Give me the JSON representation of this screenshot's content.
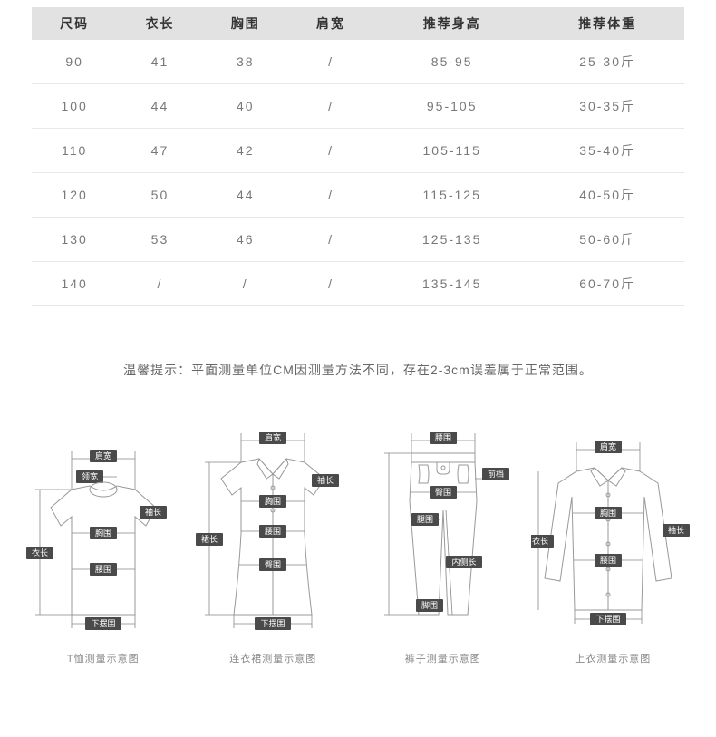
{
  "size_table": {
    "columns": [
      "尺码",
      "衣长",
      "胸围",
      "肩宽",
      "推荐身高",
      "推荐体重"
    ],
    "rows": [
      [
        "90",
        "41",
        "38",
        "/",
        "85-95",
        "25-30斤"
      ],
      [
        "100",
        "44",
        "40",
        "/",
        "95-105",
        "30-35斤"
      ],
      [
        "110",
        "47",
        "42",
        "/",
        "105-115",
        "35-40斤"
      ],
      [
        "120",
        "50",
        "44",
        "/",
        "115-125",
        "40-50斤"
      ],
      [
        "130",
        "53",
        "46",
        "/",
        "125-135",
        "50-60斤"
      ],
      [
        "140",
        "/",
        "/",
        "/",
        "135-145",
        "60-70斤"
      ]
    ],
    "header_bg": "#e2e2e2",
    "header_color": "#333333",
    "cell_color": "#777777",
    "border_color": "#e8e8e8",
    "font_size": 14
  },
  "notice": "温馨提示：平面测量单位CM因测量方法不同，存在2-3cm误差属于正常范围。",
  "diagrams": [
    {
      "caption": "T恤测量示意图",
      "labels": [
        "肩宽",
        "领宽",
        "袖长",
        "胸围",
        "衣长",
        "腰围",
        "下摆围"
      ]
    },
    {
      "caption": "连衣裙测量示意图",
      "labels": [
        "肩宽",
        "袖长",
        "胸围",
        "裙长",
        "腰围",
        "臀围",
        "下摆围"
      ]
    },
    {
      "caption": "裤子测量示意图",
      "labels": [
        "腰围",
        "前档",
        "臀围",
        "腿围",
        "内侧长",
        "脚围"
      ]
    },
    {
      "caption": "上衣测量示意图",
      "labels": [
        "肩宽",
        "衣长",
        "胸围",
        "袖长",
        "腰围",
        "下摆围"
      ]
    }
  ],
  "colors": {
    "background": "#ffffff",
    "text": "#666666",
    "label_bg": "#4a4a4a",
    "label_text": "#ffffff",
    "garment_stroke": "#999999",
    "dim_stroke": "#888888"
  }
}
